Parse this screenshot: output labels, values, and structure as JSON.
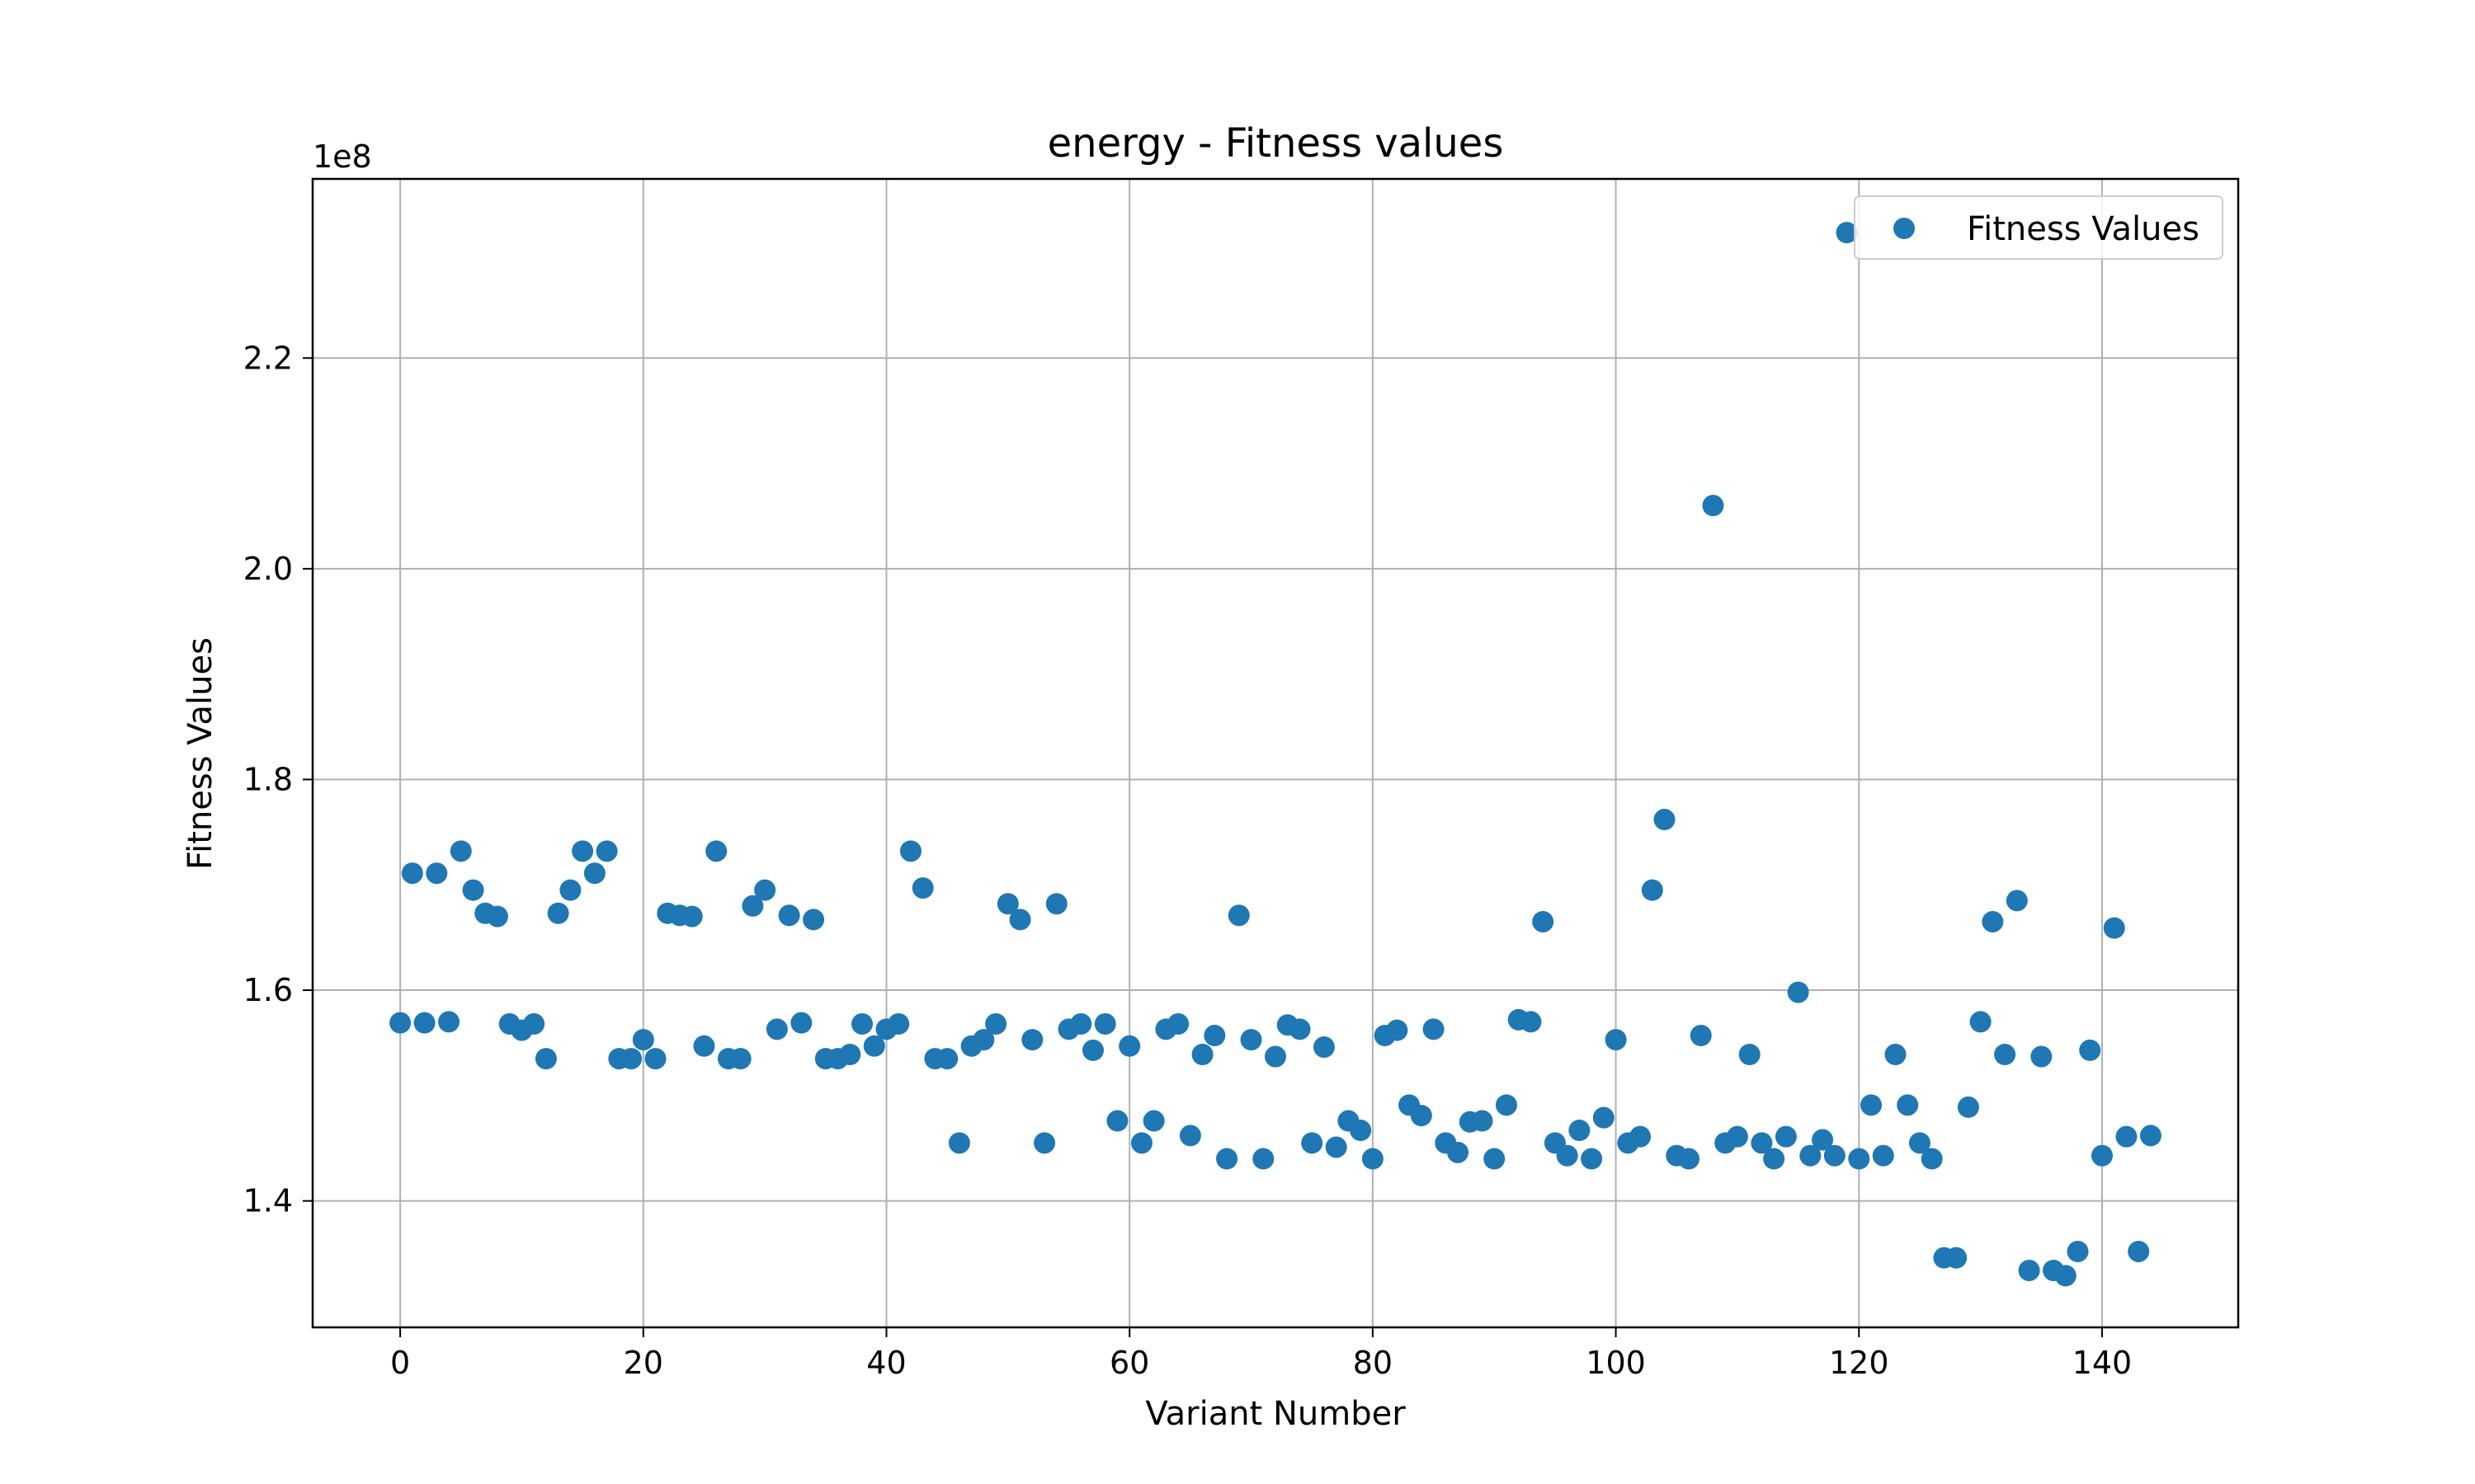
{
  "chart_data": {
    "type": "scatter",
    "title": "energy - Fitness values",
    "xlabel": "Variant Number",
    "ylabel": "Fitness Values",
    "y_offset_label": "1e8",
    "xlim": [
      -7.2,
      151.2
    ],
    "ylim": [
      1.28,
      2.37
    ],
    "x_ticks": [
      0,
      20,
      40,
      60,
      80,
      100,
      120,
      140
    ],
    "x_tick_labels": [
      "0",
      "20",
      "40",
      "60",
      "80",
      "100",
      "120",
      "140"
    ],
    "y_ticks": [
      1.4,
      1.6,
      1.8,
      2.0,
      2.2
    ],
    "y_tick_labels": [
      "1.4",
      "1.6",
      "1.8",
      "2.0",
      "2.2"
    ],
    "grid": true,
    "legend_position": "upper-right",
    "marker_color": "#1f77b4",
    "series": [
      {
        "name": "Fitness Values",
        "color": "#1f77b4",
        "x": [
          0,
          1,
          2,
          3,
          4,
          5,
          6,
          7,
          8,
          9,
          10,
          11,
          12,
          13,
          14,
          15,
          16,
          17,
          18,
          19,
          20,
          21,
          22,
          23,
          24,
          25,
          26,
          27,
          28,
          29,
          30,
          31,
          32,
          33,
          34,
          35,
          36,
          37,
          38,
          39,
          40,
          41,
          42,
          43,
          44,
          45,
          46,
          47,
          48,
          49,
          50,
          51,
          52,
          53,
          54,
          55,
          56,
          57,
          58,
          59,
          60,
          61,
          62,
          63,
          64,
          65,
          66,
          67,
          68,
          69,
          70,
          71,
          72,
          73,
          74,
          75,
          76,
          77,
          78,
          79,
          80,
          81,
          82,
          83,
          84,
          85,
          86,
          87,
          88,
          89,
          90,
          91,
          92,
          93,
          94,
          95,
          96,
          97,
          98,
          99,
          100,
          101,
          102,
          103,
          104,
          105,
          106,
          107,
          108,
          109,
          110,
          111,
          112,
          113,
          114,
          115,
          116,
          117,
          118,
          119,
          120,
          121,
          122,
          123,
          124,
          125,
          126,
          127,
          128,
          129,
          130,
          131,
          132,
          133,
          134,
          135,
          136,
          137,
          138,
          139,
          140,
          141,
          142,
          143,
          144
        ],
        "y": [
          1.569,
          1.711,
          1.569,
          1.711,
          1.57,
          1.732,
          1.695,
          1.673,
          1.67,
          1.568,
          1.562,
          1.568,
          1.535,
          1.673,
          1.695,
          1.732,
          1.711,
          1.732,
          1.535,
          1.535,
          1.553,
          1.535,
          1.673,
          1.671,
          1.67,
          1.547,
          1.732,
          1.535,
          1.535,
          1.68,
          1.695,
          1.563,
          1.671,
          1.569,
          1.667,
          1.535,
          1.535,
          1.539,
          1.568,
          1.547,
          1.563,
          1.568,
          1.732,
          1.697,
          1.535,
          1.535,
          1.455,
          1.547,
          1.553,
          1.568,
          1.682,
          1.667,
          1.553,
          1.455,
          1.682,
          1.563,
          1.568,
          1.543,
          1.568,
          1.476,
          1.547,
          1.455,
          1.476,
          1.563,
          1.568,
          1.462,
          1.539,
          1.557,
          1.44,
          1.671,
          1.553,
          1.44,
          1.537,
          1.567,
          1.563,
          1.455,
          1.546,
          1.451,
          1.476,
          1.467,
          1.44,
          1.557,
          1.562,
          1.491,
          1.481,
          1.563,
          1.455,
          1.446,
          1.475,
          1.476,
          1.44,
          1.491,
          1.572,
          1.57,
          1.665,
          1.455,
          1.443,
          1.467,
          1.44,
          1.479,
          1.553,
          1.455,
          1.461,
          1.695,
          1.762,
          1.443,
          1.44,
          1.557,
          2.06,
          1.455,
          1.461,
          1.539,
          1.455,
          1.44,
          1.461,
          1.598,
          1.443,
          1.458,
          1.443,
          2.319,
          1.44,
          1.491,
          1.443,
          1.539,
          1.491,
          1.455,
          1.44,
          1.346,
          1.346,
          1.489,
          1.57,
          1.665,
          1.539,
          1.685,
          1.334,
          1.537,
          1.334,
          1.329,
          1.352,
          1.543,
          1.443,
          1.659,
          1.461,
          1.352,
          1.462
        ]
      }
    ]
  }
}
